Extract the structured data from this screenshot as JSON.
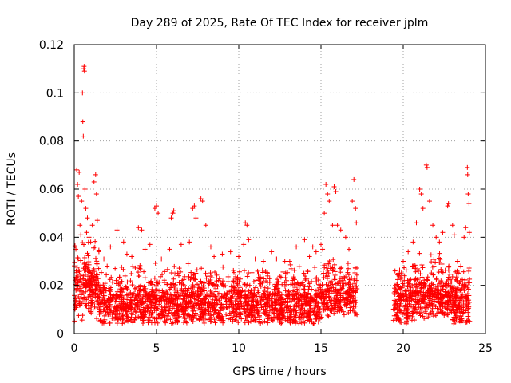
{
  "chart_data": {
    "type": "scatter",
    "title": "Day 289 of 2025, Rate Of TEC Index for receiver jplm",
    "xlabel": "GPS time / hours",
    "ylabel": "ROTI / TECUs",
    "xlim": [
      0,
      25
    ],
    "ylim": [
      0,
      0.12
    ],
    "x_ticks": [
      0,
      5,
      10,
      15,
      20,
      25
    ],
    "x_tick_labels": [
      "0",
      "5",
      "10",
      "15",
      "20",
      "25"
    ],
    "y_ticks": [
      0,
      0.02,
      0.04,
      0.06,
      0.08,
      0.1,
      0.12
    ],
    "y_tick_labels": [
      "0",
      "0.02",
      "0.04",
      "0.06",
      "0.08",
      "0.1",
      "0.12"
    ],
    "grid": true,
    "marker": "+",
    "color": "#ff0000",
    "data_gap_hours": [
      17.2,
      19.4
    ],
    "series": [
      {
        "name": "ROTI",
        "points": [
          [
            0.1,
            0.035
          ],
          [
            0.15,
            0.068
          ],
          [
            0.2,
            0.062
          ],
          [
            0.25,
            0.057
          ],
          [
            0.3,
            0.067
          ],
          [
            0.35,
            0.045
          ],
          [
            0.4,
            0.041
          ],
          [
            0.45,
            0.055
          ],
          [
            0.5,
            0.1
          ],
          [
            0.52,
            0.088
          ],
          [
            0.55,
            0.082
          ],
          [
            0.58,
            0.11
          ],
          [
            0.6,
            0.111
          ],
          [
            0.62,
            0.109
          ],
          [
            0.65,
            0.06
          ],
          [
            0.7,
            0.052
          ],
          [
            0.75,
            0.042
          ],
          [
            0.8,
            0.048
          ],
          [
            0.9,
            0.04
          ],
          [
            1.0,
            0.038
          ],
          [
            1.1,
            0.045
          ],
          [
            1.2,
            0.063
          ],
          [
            1.3,
            0.066
          ],
          [
            1.35,
            0.058
          ],
          [
            1.4,
            0.047
          ],
          [
            1.5,
            0.034
          ],
          [
            1.8,
            0.031
          ],
          [
            2.0,
            0.028
          ],
          [
            2.2,
            0.036
          ],
          [
            2.6,
            0.043
          ],
          [
            3.0,
            0.038
          ],
          [
            3.2,
            0.033
          ],
          [
            3.5,
            0.032
          ],
          [
            3.9,
            0.044
          ],
          [
            4.1,
            0.043
          ],
          [
            4.3,
            0.035
          ],
          [
            4.6,
            0.037
          ],
          [
            4.9,
            0.052
          ],
          [
            5.0,
            0.053
          ],
          [
            5.1,
            0.05
          ],
          [
            5.3,
            0.031
          ],
          [
            5.8,
            0.035
          ],
          [
            5.9,
            0.048
          ],
          [
            6.0,
            0.05
          ],
          [
            6.05,
            0.051
          ],
          [
            6.5,
            0.037
          ],
          [
            7.0,
            0.038
          ],
          [
            7.2,
            0.052
          ],
          [
            7.3,
            0.053
          ],
          [
            7.4,
            0.048
          ],
          [
            7.7,
            0.056
          ],
          [
            7.8,
            0.055
          ],
          [
            8.0,
            0.045
          ],
          [
            8.3,
            0.036
          ],
          [
            8.5,
            0.032
          ],
          [
            9.0,
            0.033
          ],
          [
            9.5,
            0.034
          ],
          [
            10.0,
            0.032
          ],
          [
            10.3,
            0.037
          ],
          [
            10.4,
            0.046
          ],
          [
            10.5,
            0.045
          ],
          [
            10.6,
            0.039
          ],
          [
            11.0,
            0.031
          ],
          [
            11.5,
            0.03
          ],
          [
            12.0,
            0.034
          ],
          [
            12.3,
            0.031
          ],
          [
            12.8,
            0.03
          ],
          [
            13.1,
            0.03
          ],
          [
            13.5,
            0.036
          ],
          [
            14.0,
            0.039
          ],
          [
            14.3,
            0.032
          ],
          [
            14.5,
            0.036
          ],
          [
            14.7,
            0.034
          ],
          [
            15.0,
            0.037
          ],
          [
            15.1,
            0.035
          ],
          [
            15.2,
            0.05
          ],
          [
            15.3,
            0.062
          ],
          [
            15.4,
            0.058
          ],
          [
            15.5,
            0.055
          ],
          [
            15.7,
            0.045
          ],
          [
            15.8,
            0.061
          ],
          [
            15.9,
            0.059
          ],
          [
            16.0,
            0.045
          ],
          [
            16.2,
            0.043
          ],
          [
            16.5,
            0.04
          ],
          [
            16.7,
            0.035
          ],
          [
            16.9,
            0.055
          ],
          [
            17.0,
            0.064
          ],
          [
            17.1,
            0.052
          ],
          [
            17.15,
            0.046
          ],
          [
            19.5,
            0.026
          ],
          [
            19.7,
            0.025
          ],
          [
            20.0,
            0.03
          ],
          [
            20.3,
            0.034
          ],
          [
            20.6,
            0.038
          ],
          [
            20.8,
            0.046
          ],
          [
            21.0,
            0.06
          ],
          [
            21.1,
            0.058
          ],
          [
            21.2,
            0.052
          ],
          [
            21.4,
            0.07
          ],
          [
            21.45,
            0.069
          ],
          [
            21.6,
            0.055
          ],
          [
            21.8,
            0.045
          ],
          [
            22.0,
            0.04
          ],
          [
            22.2,
            0.038
          ],
          [
            22.4,
            0.042
          ],
          [
            22.7,
            0.053
          ],
          [
            22.75,
            0.054
          ],
          [
            23.0,
            0.045
          ],
          [
            23.1,
            0.041
          ],
          [
            23.3,
            0.03
          ],
          [
            23.5,
            0.028
          ],
          [
            23.7,
            0.04
          ],
          [
            23.8,
            0.044
          ],
          [
            23.9,
            0.069
          ],
          [
            23.92,
            0.066
          ],
          [
            23.95,
            0.058
          ],
          [
            24.0,
            0.054
          ],
          [
            24.02,
            0.042
          ]
        ]
      }
    ]
  }
}
